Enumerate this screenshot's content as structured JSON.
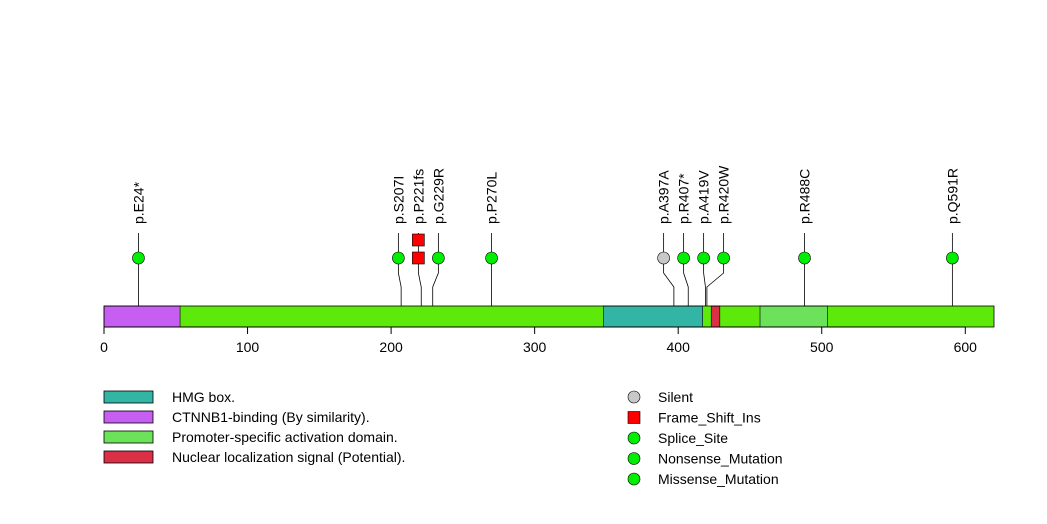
{
  "chart_data": {
    "type": "lollipop",
    "protein_length": 620,
    "x_ticks": [
      0,
      100,
      200,
      300,
      400,
      500,
      600
    ],
    "colors": {
      "backbone": "#5de90a",
      "hmg_box": "#33b5a5",
      "ctnnb1": "#c65ef2",
      "promoter": "#6be25a",
      "nls": "#da2f47",
      "silent": "#c8c8c8",
      "frame_shift_ins": "#ff0000",
      "splice": "#00ee00",
      "nonsense": "#00ee00",
      "missense": "#00ee00"
    },
    "domains": [
      {
        "name": "CTNNB1-binding (By similarity).",
        "start": 1,
        "end": 53,
        "color_key": "ctnnb1"
      },
      {
        "name": "HMG box.",
        "start": 349,
        "end": 417,
        "color_key": "hmg_box"
      },
      {
        "name": "Nuclear localization signal (Potential).",
        "start": 424,
        "end": 429,
        "color_key": "nls"
      },
      {
        "name": "Promoter-specific activation domain.",
        "start": 458,
        "end": 504,
        "color_key": "promoter"
      }
    ],
    "mutations": [
      {
        "label": "p.E24*",
        "pos": 24,
        "count": 1,
        "type": "nonsense"
      },
      {
        "label": "p.S207I",
        "pos": 207,
        "count": 1,
        "type": "missense"
      },
      {
        "label": "p.P221fs",
        "pos": 221,
        "count": 2,
        "type": "frame_shift_ins"
      },
      {
        "label": "p.G229R",
        "pos": 229,
        "count": 1,
        "type": "missense"
      },
      {
        "label": "p.P270L",
        "pos": 270,
        "count": 1,
        "type": "missense"
      },
      {
        "label": "p.A397A",
        "pos": 397,
        "count": 1,
        "type": "silent"
      },
      {
        "label": "p.R407*",
        "pos": 407,
        "count": 1,
        "type": "nonsense"
      },
      {
        "label": "p.A419V",
        "pos": 419,
        "count": 1,
        "type": "missense"
      },
      {
        "label": "p.R420W",
        "pos": 420,
        "count": 1,
        "type": "missense"
      },
      {
        "label": "p.R488C",
        "pos": 488,
        "count": 1,
        "type": "missense"
      },
      {
        "label": "p.Q591R",
        "pos": 591,
        "count": 1,
        "type": "missense"
      }
    ],
    "legend_domains": [
      {
        "label": "HMG box.",
        "color_key": "hmg_box"
      },
      {
        "label": "CTNNB1-binding (By similarity).",
        "color_key": "ctnnb1"
      },
      {
        "label": "Promoter-specific activation domain.",
        "color_key": "promoter"
      },
      {
        "label": "Nuclear localization signal (Potential).",
        "color_key": "nls"
      }
    ],
    "legend_mutations": [
      {
        "label": "Silent",
        "shape": "circle",
        "color_key": "silent"
      },
      {
        "label": "Frame_Shift_Ins",
        "shape": "square",
        "color_key": "frame_shift_ins"
      },
      {
        "label": "Splice_Site",
        "shape": "circle",
        "color_key": "splice"
      },
      {
        "label": "Nonsense_Mutation",
        "shape": "circle",
        "color_key": "nonsense"
      },
      {
        "label": "Missense_Mutation",
        "shape": "circle",
        "color_key": "missense"
      }
    ]
  }
}
